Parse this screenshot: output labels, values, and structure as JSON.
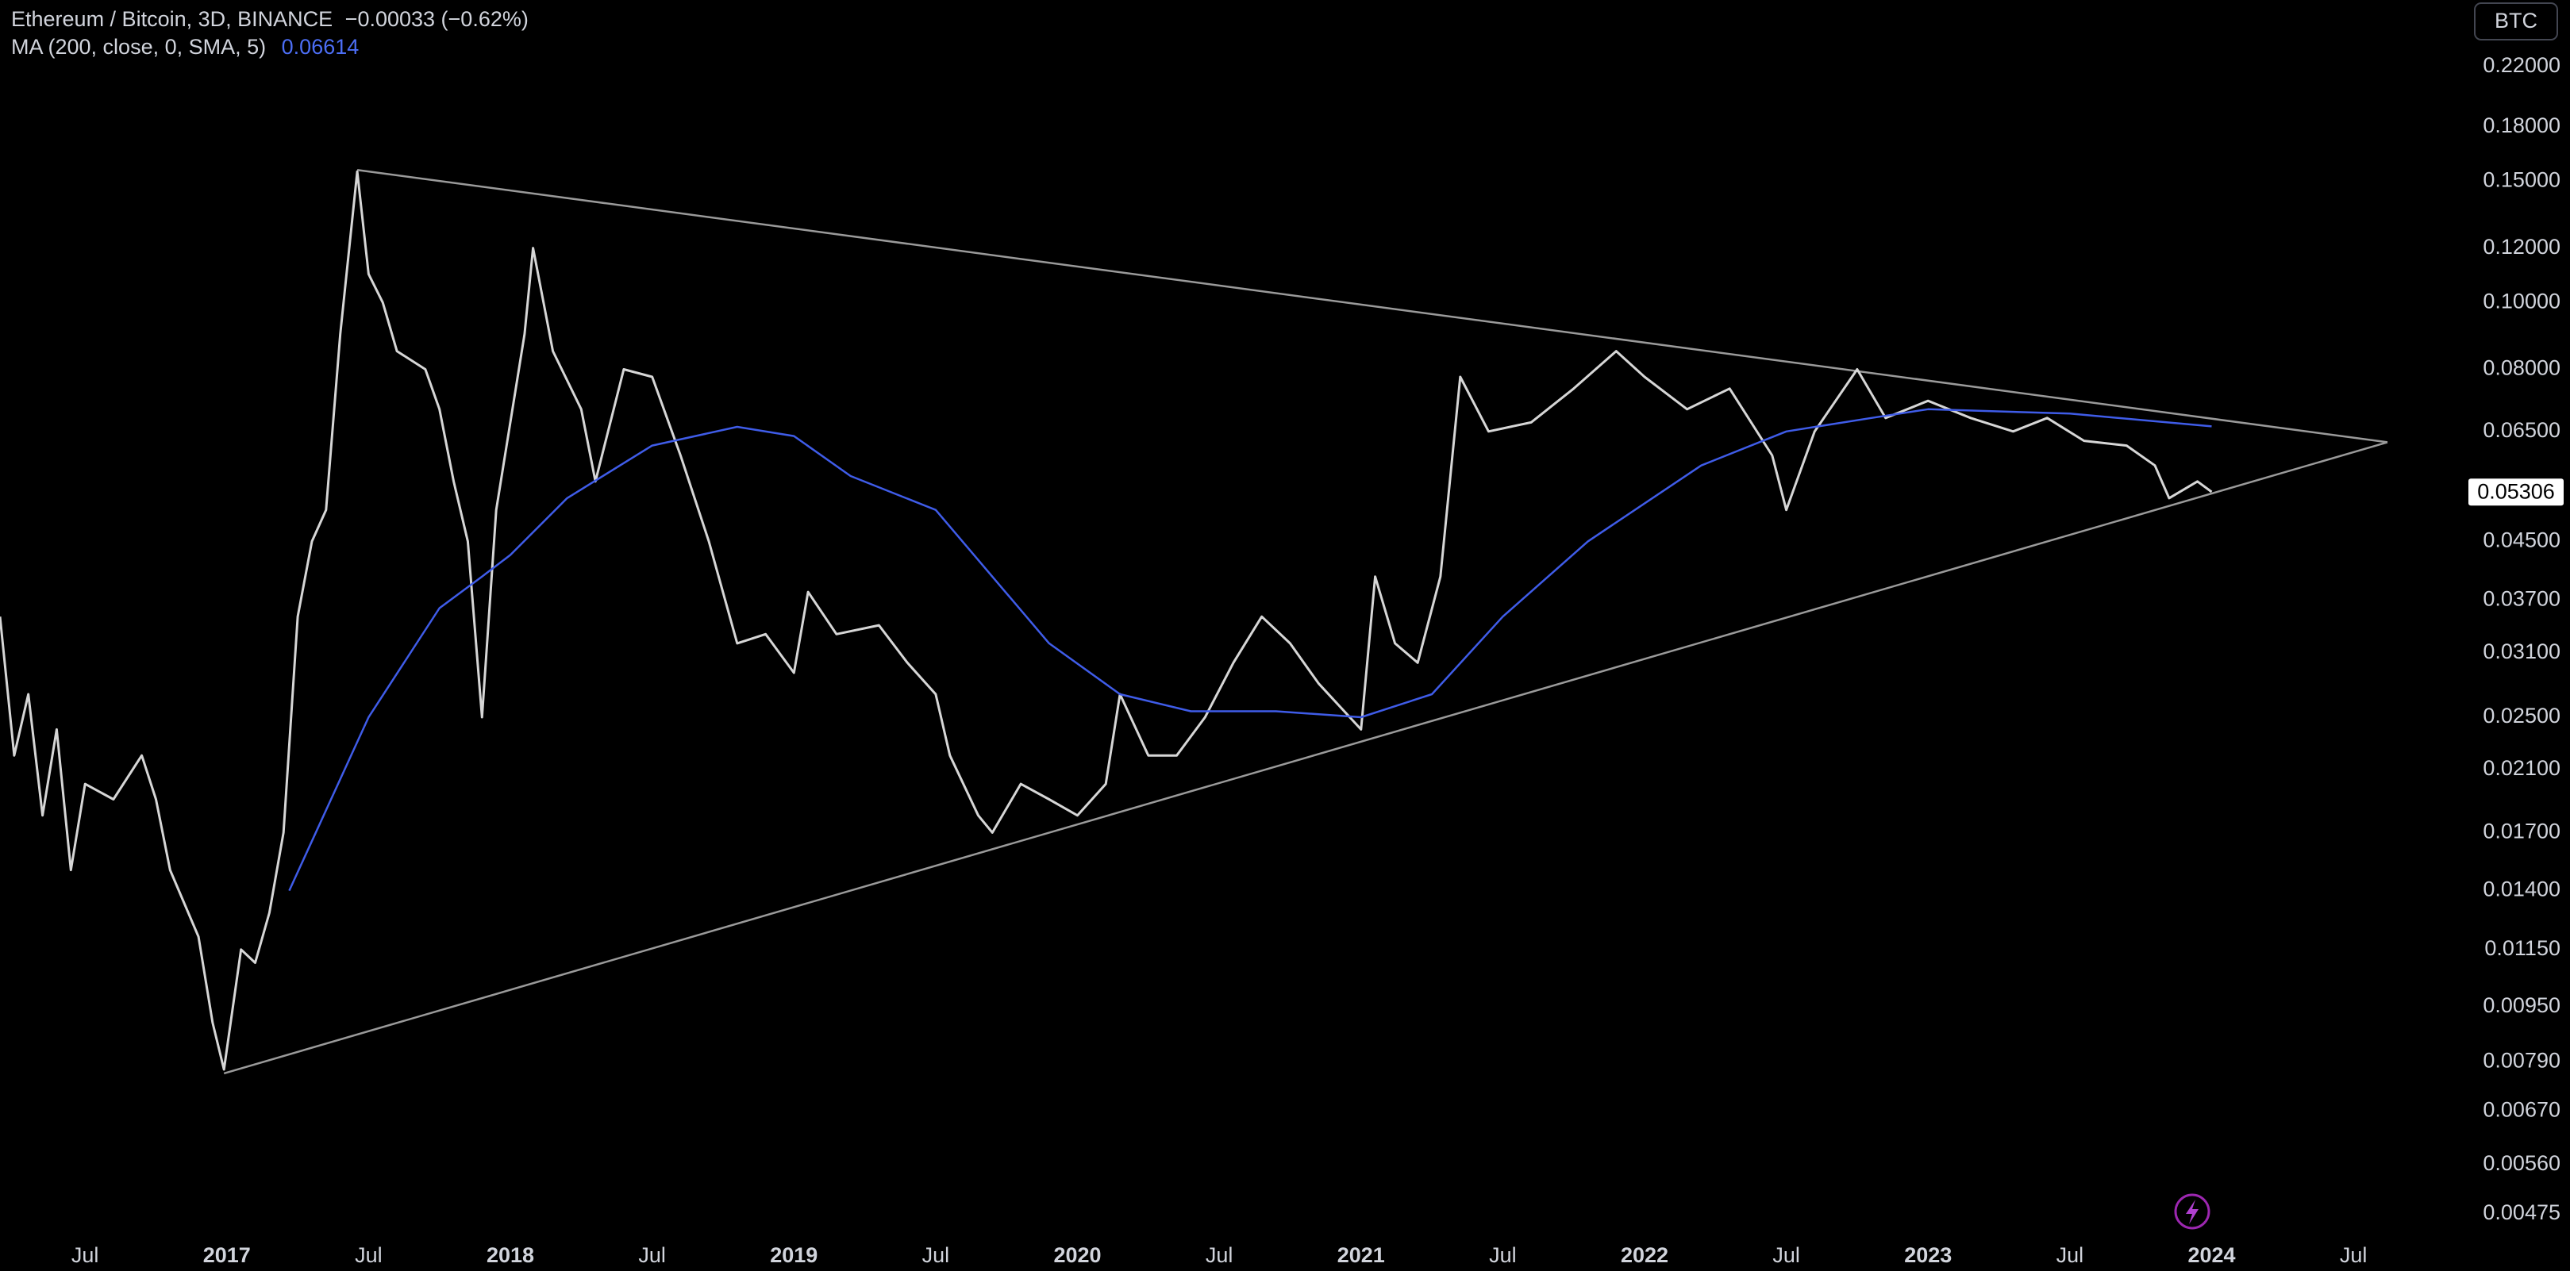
{
  "chart_data": {
    "type": "line",
    "title": "Ethereum / Bitcoin, 3D, BINANCE",
    "change_label": "−0.00033 (−0.62%)",
    "indicator_label": "MA (200, close, 0, SMA, 5)",
    "indicator_value_label": "0.06614",
    "currency_button": "BTC",
    "log_scale": true,
    "grid": false,
    "xlim": [
      2016.2,
      2024.9
    ],
    "ylim": [
      0.00447,
      0.275
    ],
    "xticks": [
      {
        "value": 2016.5,
        "label": "Jul"
      },
      2017,
      {
        "value": 2017.5,
        "label": "Jul"
      },
      2018,
      {
        "value": 2018.5,
        "label": "Jul"
      },
      2019,
      {
        "value": 2019.5,
        "label": "Jul"
      },
      2020,
      {
        "value": 2020.5,
        "label": "Jul"
      },
      2021,
      {
        "value": 2021.5,
        "label": "Jul"
      },
      2022,
      {
        "value": 2022.5,
        "label": "Jul"
      },
      2023,
      {
        "value": 2023.5,
        "label": "Jul"
      },
      2024,
      {
        "value": 2024.5,
        "label": "Jul"
      }
    ],
    "yticks": [
      {
        "value": 0.22,
        "label": "0.22000"
      },
      {
        "value": 0.18,
        "label": "0.18000"
      },
      {
        "value": 0.15,
        "label": "0.15000"
      },
      {
        "value": 0.12,
        "label": "0.12000"
      },
      {
        "value": 0.1,
        "label": "0.10000"
      },
      {
        "value": 0.08,
        "label": "0.08000"
      },
      {
        "value": 0.065,
        "label": "0.06500"
      },
      {
        "value": 0.045,
        "label": "0.04500"
      },
      {
        "value": 0.037,
        "label": "0.03700"
      },
      {
        "value": 0.031,
        "label": "0.03100"
      },
      {
        "value": 0.025,
        "label": "0.02500"
      },
      {
        "value": 0.021,
        "label": "0.02100"
      },
      {
        "value": 0.017,
        "label": "0.01700"
      },
      {
        "value": 0.014,
        "label": "0.01400"
      },
      {
        "value": 0.0115,
        "label": "0.01150"
      },
      {
        "value": 0.0095,
        "label": "0.00950"
      },
      {
        "value": 0.0079,
        "label": "0.00790"
      },
      {
        "value": 0.0067,
        "label": "0.00670"
      },
      {
        "value": 0.0056,
        "label": "0.00560"
      },
      {
        "value": 0.00475,
        "label": "0.00475"
      }
    ],
    "series": [
      {
        "name": "Ethereum / Bitcoin",
        "color": "#d6d6d6",
        "x": [
          2016.2,
          2016.25,
          2016.3,
          2016.35,
          2016.4,
          2016.45,
          2016.5,
          2016.6,
          2016.7,
          2016.75,
          2016.8,
          2016.9,
          2016.95,
          2016.99,
          2017.05,
          2017.1,
          2017.15,
          2017.2,
          2017.25,
          2017.3,
          2017.35,
          2017.4,
          2017.46,
          2017.5,
          2017.55,
          2017.6,
          2017.7,
          2017.75,
          2017.8,
          2017.85,
          2017.9,
          2017.95,
          2018.05,
          2018.08,
          2018.15,
          2018.25,
          2018.3,
          2018.4,
          2018.5,
          2018.6,
          2018.7,
          2018.8,
          2018.9,
          2019.0,
          2019.05,
          2019.15,
          2019.3,
          2019.4,
          2019.5,
          2019.55,
          2019.65,
          2019.7,
          2019.8,
          2019.9,
          2020.0,
          2020.1,
          2020.15,
          2020.25,
          2020.35,
          2020.45,
          2020.55,
          2020.65,
          2020.75,
          2020.85,
          2021.0,
          2021.05,
          2021.12,
          2021.2,
          2021.28,
          2021.35,
          2021.45,
          2021.6,
          2021.75,
          2021.9,
          2022.0,
          2022.15,
          2022.3,
          2022.45,
          2022.5,
          2022.6,
          2022.75,
          2022.85,
          2023.0,
          2023.15,
          2023.3,
          2023.42,
          2023.55,
          2023.7,
          2023.8,
          2023.85,
          2023.95,
          2024.0
        ],
        "values": [
          0.035,
          0.022,
          0.027,
          0.018,
          0.024,
          0.015,
          0.02,
          0.019,
          0.022,
          0.019,
          0.015,
          0.012,
          0.009,
          0.0077,
          0.0115,
          0.011,
          0.013,
          0.017,
          0.035,
          0.045,
          0.05,
          0.09,
          0.155,
          0.11,
          0.1,
          0.085,
          0.08,
          0.07,
          0.055,
          0.045,
          0.025,
          0.05,
          0.09,
          0.12,
          0.085,
          0.07,
          0.055,
          0.08,
          0.078,
          0.06,
          0.045,
          0.032,
          0.033,
          0.029,
          0.038,
          0.033,
          0.034,
          0.03,
          0.027,
          0.022,
          0.018,
          0.017,
          0.02,
          0.019,
          0.018,
          0.02,
          0.027,
          0.022,
          0.022,
          0.025,
          0.03,
          0.035,
          0.032,
          0.028,
          0.024,
          0.04,
          0.032,
          0.03,
          0.04,
          0.078,
          0.065,
          0.067,
          0.075,
          0.085,
          0.078,
          0.07,
          0.075,
          0.06,
          0.05,
          0.065,
          0.08,
          0.068,
          0.072,
          0.068,
          0.065,
          0.068,
          0.063,
          0.062,
          0.058,
          0.052,
          0.055,
          0.0531
        ]
      },
      {
        "name": "MA (200, close, 0, SMA, 5)",
        "color": "#3f5ce8",
        "x": [
          2017.22,
          2017.5,
          2017.75,
          2017.9,
          2018.0,
          2018.2,
          2018.5,
          2018.8,
          2019.0,
          2019.2,
          2019.5,
          2019.7,
          2019.9,
          2020.15,
          2020.4,
          2020.7,
          2021.0,
          2021.25,
          2021.5,
          2021.8,
          2022.2,
          2022.5,
          2022.8,
          2023.0,
          2023.5,
          2024.0
        ],
        "values": [
          0.014,
          0.025,
          0.036,
          0.04,
          0.043,
          0.052,
          0.062,
          0.066,
          0.064,
          0.056,
          0.05,
          0.04,
          0.032,
          0.027,
          0.0255,
          0.0255,
          0.025,
          0.027,
          0.035,
          0.045,
          0.058,
          0.065,
          0.068,
          0.07,
          0.069,
          0.0661
        ]
      }
    ],
    "trendlines": [
      {
        "color": "#9a9a9a",
        "x": [
          2017.46,
          2024.62
        ],
        "values": [
          0.1558,
          0.0627
        ]
      },
      {
        "color": "#9a9a9a",
        "x": [
          2016.99,
          2024.62
        ],
        "values": [
          0.0076,
          0.0627
        ]
      }
    ],
    "last_value": 0.05306,
    "last_value_label": "0.05306"
  }
}
